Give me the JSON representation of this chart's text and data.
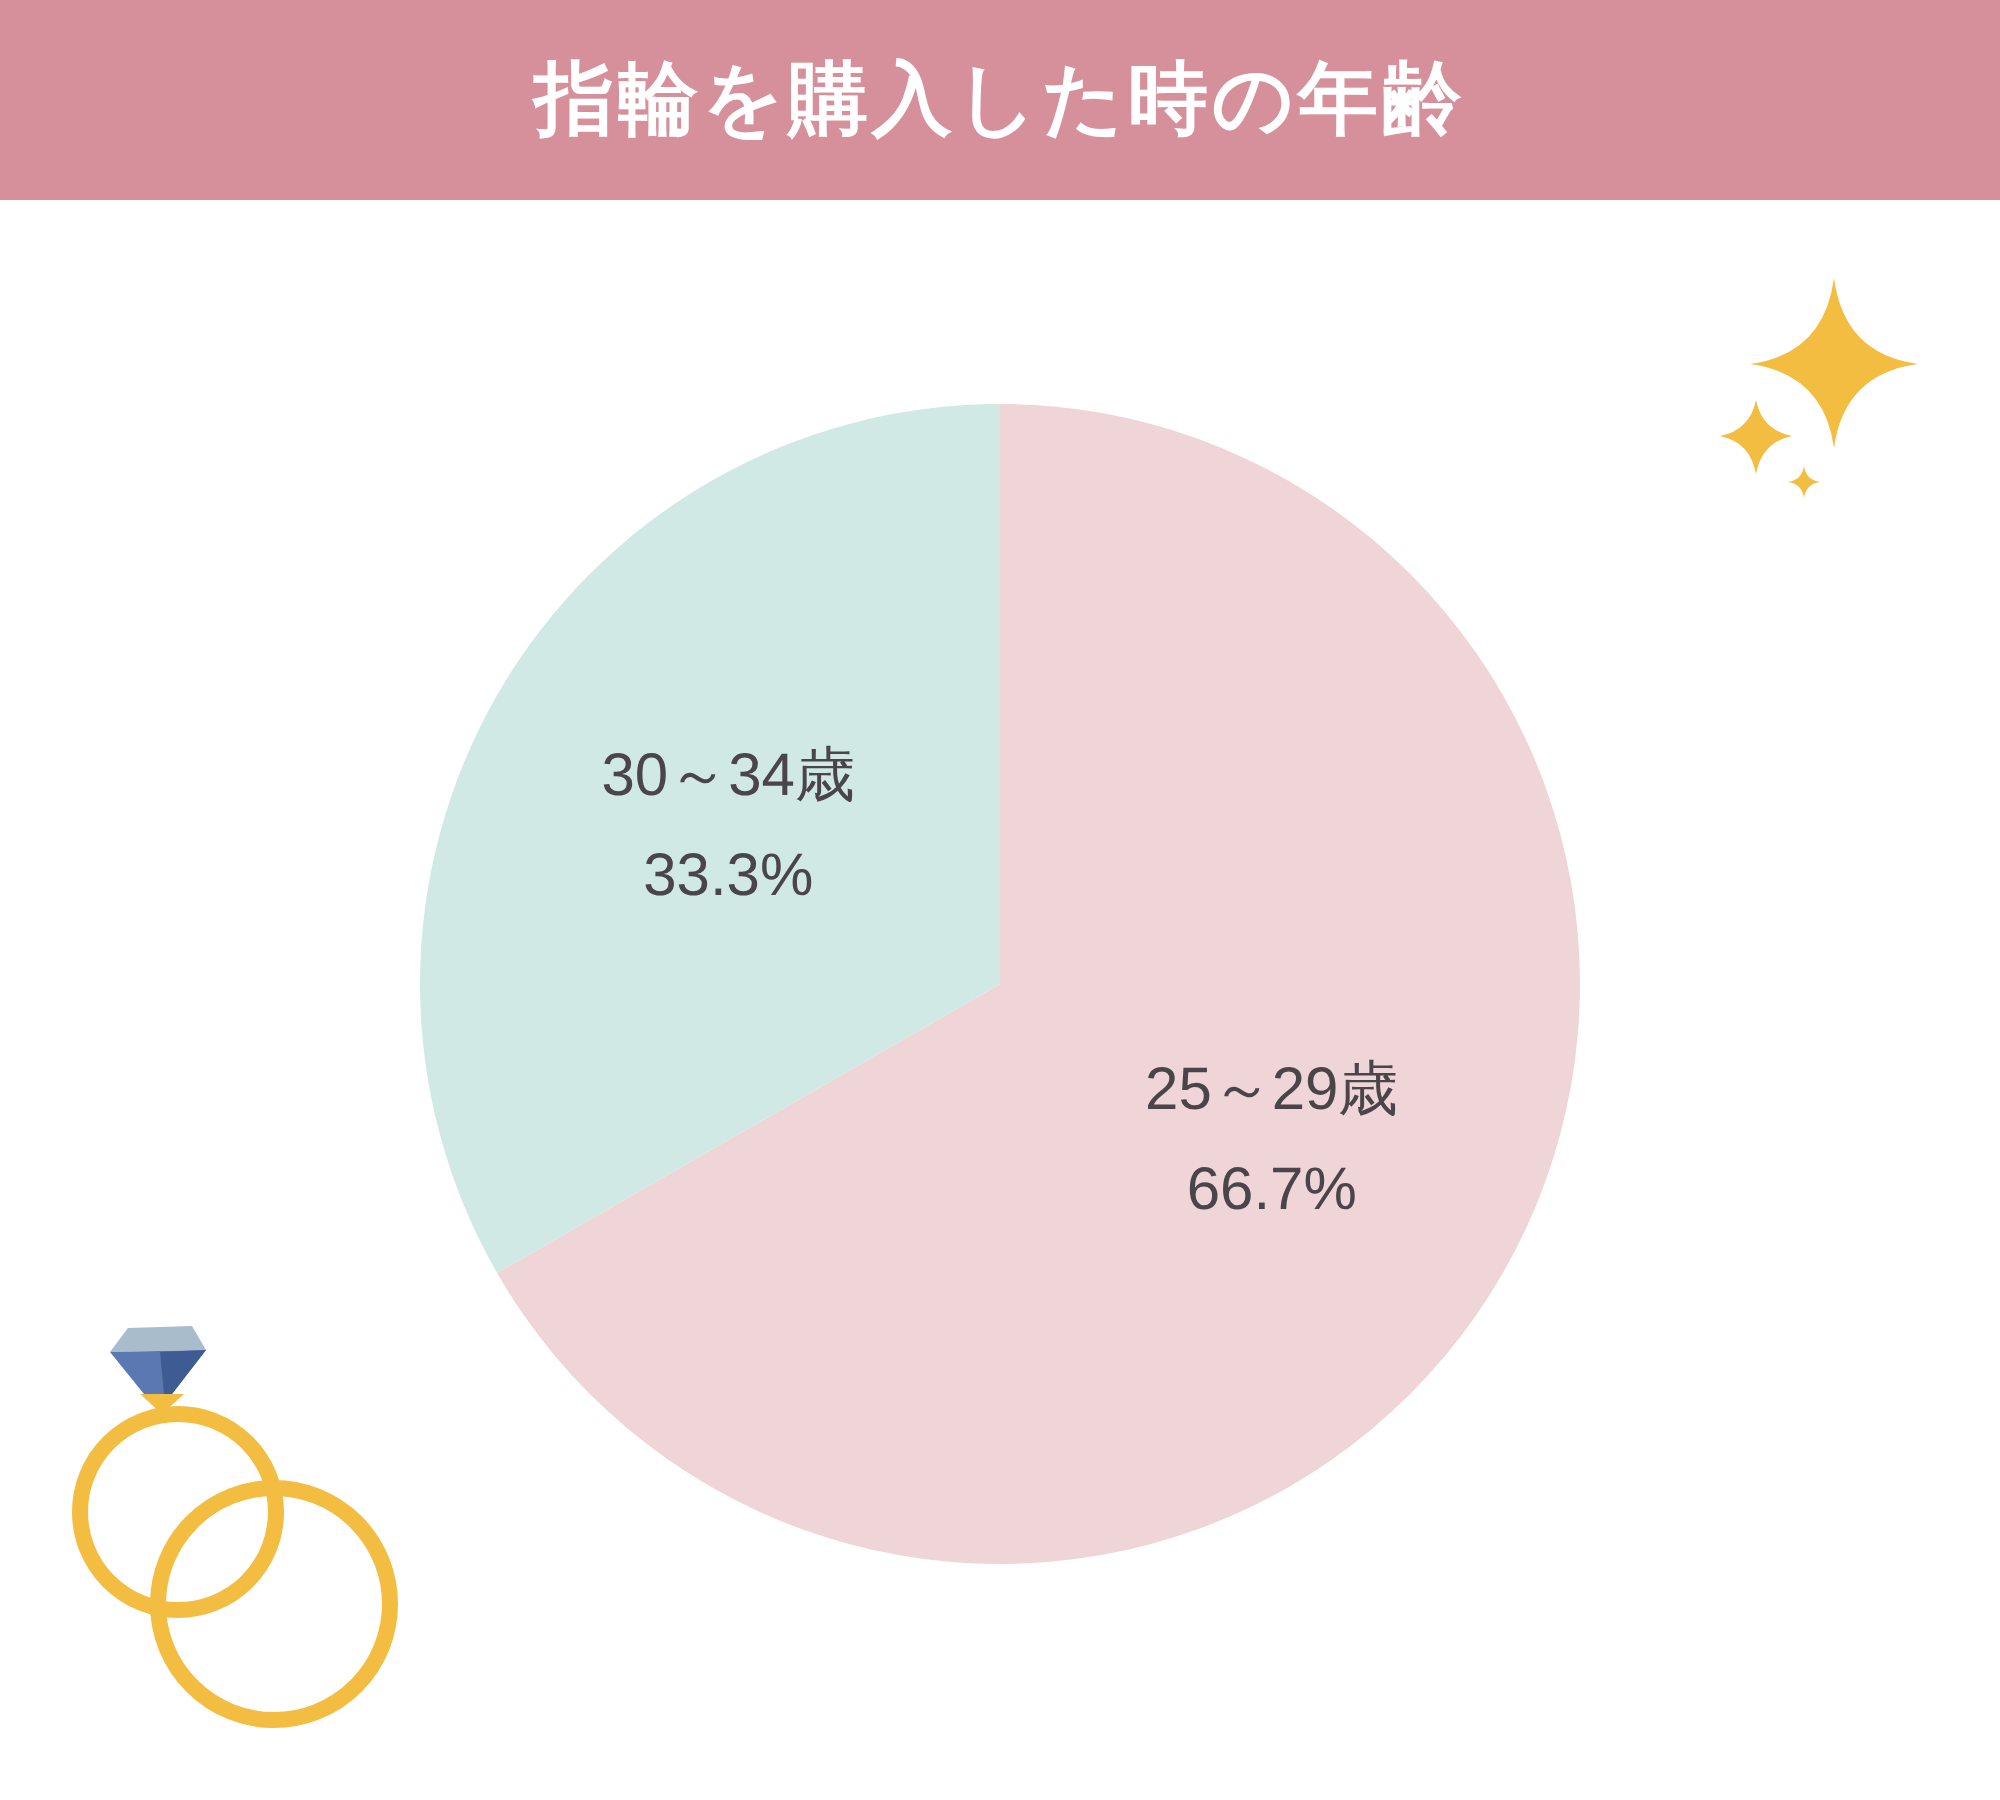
{
  "chart_data": {
    "type": "pie",
    "title": "指輪を購入した時の年齢",
    "categories": [
      "25～29歳",
      "30～34歳"
    ],
    "values": [
      66.7,
      33.3
    ],
    "colors": [
      "#efd5d8",
      "#d0e9e5"
    ],
    "value_labels": [
      "66.7%",
      "33.3%"
    ]
  }
}
